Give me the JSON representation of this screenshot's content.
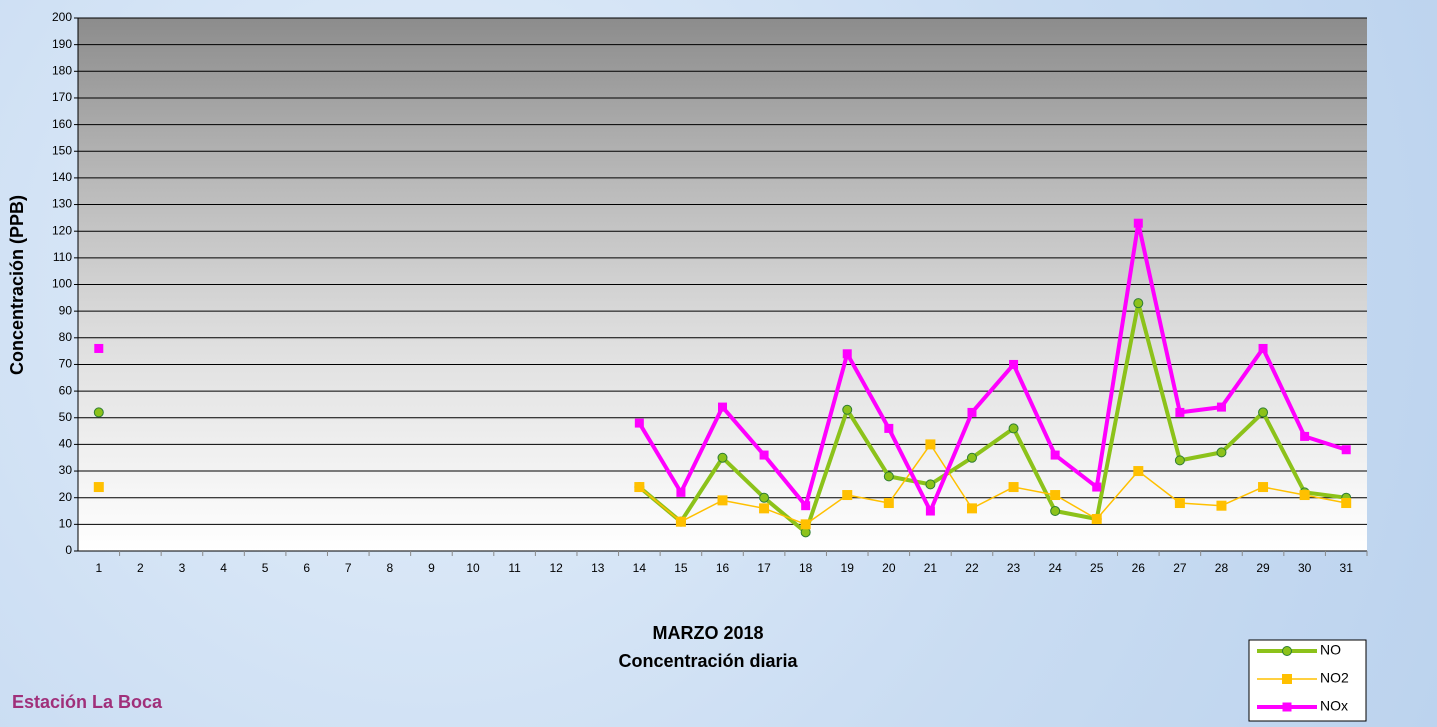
{
  "chart_data": {
    "type": "line",
    "title": "MARZO 2018",
    "subtitle": "Concentración diaria",
    "y_label": "Concentración  (PPB)",
    "annotation": "Estación La Boca",
    "categories": [
      "1",
      "2",
      "3",
      "4",
      "5",
      "6",
      "7",
      "8",
      "9",
      "10",
      "11",
      "12",
      "13",
      "14",
      "15",
      "16",
      "17",
      "18",
      "19",
      "20",
      "21",
      "22",
      "23",
      "24",
      "25",
      "26",
      "27",
      "28",
      "29",
      "30",
      "31"
    ],
    "series": [
      {
        "name": "NO",
        "color": "#8cc21a",
        "marker": "circle",
        "values": [
          52,
          null,
          null,
          null,
          null,
          null,
          null,
          null,
          null,
          null,
          null,
          null,
          null,
          24,
          11,
          35,
          20,
          7,
          53,
          28,
          25,
          35,
          46,
          15,
          12,
          93,
          34,
          37,
          52,
          22,
          20
        ]
      },
      {
        "name": "NO2",
        "color": "#ffc000",
        "marker": "square",
        "values": [
          24,
          null,
          null,
          null,
          null,
          null,
          null,
          null,
          null,
          null,
          null,
          null,
          null,
          24,
          11,
          19,
          16,
          10,
          21,
          18,
          40,
          16,
          24,
          21,
          12,
          30,
          18,
          17,
          24,
          21,
          18
        ]
      },
      {
        "name": "NOx",
        "color": "#ff00ff",
        "marker": "square",
        "values": [
          76,
          null,
          null,
          null,
          null,
          null,
          null,
          null,
          null,
          null,
          null,
          null,
          null,
          48,
          22,
          54,
          36,
          17,
          74,
          46,
          15,
          52,
          70,
          36,
          24,
          123,
          52,
          54,
          76,
          43,
          38
        ]
      }
    ],
    "ylim": [
      0,
      200
    ],
    "yticks": [
      0,
      10,
      20,
      30,
      40,
      50,
      60,
      70,
      80,
      90,
      100,
      110,
      120,
      130,
      140,
      150,
      160,
      170,
      180,
      190,
      200
    ],
    "grid": true,
    "legend": "bottom-right"
  }
}
